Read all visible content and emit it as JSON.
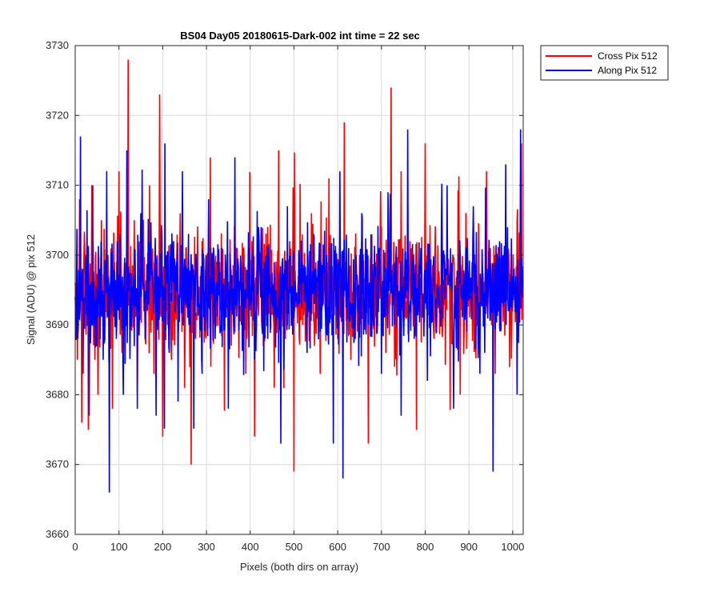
{
  "chart_data": {
    "type": "line",
    "title": "BS04 Day05 20180615-Dark-002 int time = 22 sec",
    "xlabel": "Pixels (both dirs on array)",
    "ylabel": "Signal (ADU) @ pix 512",
    "xlim": [
      0,
      1024
    ],
    "ylim": [
      3660,
      3730
    ],
    "xticks": [
      0,
      100,
      200,
      300,
      400,
      500,
      600,
      700,
      800,
      900,
      1000
    ],
    "yticks": [
      3660,
      3670,
      3680,
      3690,
      3700,
      3710,
      3720,
      3730
    ],
    "grid": true,
    "legend_position": "outside top-right",
    "series": [
      {
        "name": "Cross Pix 512",
        "color": "#ff0000",
        "summary": {
          "n_points": 1024,
          "approx_mean": 3695,
          "approx_min": 3669,
          "approx_max": 3728
        },
        "x": [
          0,
          5,
          10,
          15,
          20,
          24,
          30,
          38,
          45,
          52,
          60,
          68,
          75,
          85,
          92,
          100,
          107,
          115,
          121,
          128,
          135,
          142,
          150,
          160,
          170,
          180,
          187,
          193,
          200,
          210,
          220,
          230,
          240,
          250,
          258,
          265,
          275,
          290,
          310,
          330,
          350,
          370,
          390,
          400,
          410,
          420,
          430,
          440,
          455,
          465,
          480,
          490,
          500,
          510,
          520,
          540,
          560,
          580,
          600,
          615,
          630,
          650,
          670,
          680,
          690,
          700,
          710,
          715,
          722,
          730,
          745,
          755,
          765,
          780,
          800,
          820,
          850,
          880,
          900,
          920,
          940,
          960,
          980,
          1000,
          1010,
          1020,
          1024
        ],
        "y": [
          3696,
          3685,
          3708,
          3676,
          3700,
          3690,
          3675,
          3710,
          3685,
          3680,
          3705,
          3688,
          3700,
          3678,
          3692,
          3712,
          3686,
          3694,
          3728,
          3690,
          3705,
          3680,
          3696,
          3688,
          3710,
          3683,
          3700,
          3723,
          3674,
          3698,
          3685,
          3692,
          3706,
          3681,
          3697,
          3670,
          3688,
          3702,
          3684,
          3699,
          3686,
          3701,
          3683,
          3695,
          3674,
          3698,
          3687,
          3704,
          3681,
          3715,
          3688,
          3702,
          3669,
          3697,
          3690,
          3706,
          3683,
          3711,
          3688,
          3719,
          3685,
          3700,
          3673,
          3696,
          3690,
          3704,
          3686,
          3698,
          3724,
          3684,
          3712,
          3691,
          3702,
          3675,
          3716,
          3688,
          3701,
          3680,
          3697,
          3690,
          3712,
          3683,
          3700,
          3692,
          3705,
          3716,
          3695
        ]
      },
      {
        "name": "Along Pix 512",
        "color": "#0000ff",
        "summary": {
          "n_points": 1024,
          "approx_mean": 3695,
          "approx_min": 3666,
          "approx_max": 3718
        },
        "x": [
          0,
          6,
          12,
          18,
          25,
          32,
          40,
          48,
          56,
          64,
          72,
          78,
          86,
          94,
          102,
          110,
          118,
          126,
          134,
          142,
          150,
          160,
          172,
          185,
          195,
          205,
          215,
          225,
          235,
          245,
          260,
          275,
          290,
          305,
          320,
          335,
          350,
          365,
          380,
          395,
          410,
          425,
          440,
          455,
          470,
          485,
          500,
          515,
          530,
          545,
          560,
          575,
          590,
          605,
          612,
          625,
          640,
          655,
          670,
          685,
          700,
          715,
          730,
          745,
          760,
          775,
          790,
          805,
          820,
          835,
          850,
          865,
          880,
          895,
          910,
          925,
          940,
          955,
          970,
          985,
          1000,
          1010,
          1018,
          1024
        ],
        "y": [
          3694,
          3688,
          3717,
          3683,
          3700,
          3677,
          3710,
          3690,
          3698,
          3685,
          3712,
          3666,
          3695,
          3688,
          3703,
          3680,
          3715,
          3690,
          3697,
          3678,
          3706,
          3688,
          3700,
          3677,
          3694,
          3716,
          3686,
          3702,
          3679,
          3712,
          3690,
          3697,
          3683,
          3708,
          3688,
          3701,
          3678,
          3714,
          3690,
          3697,
          3685,
          3704,
          3688,
          3699,
          3673,
          3707,
          3691,
          3698,
          3686,
          3703,
          3689,
          3700,
          3673,
          3712,
          3668,
          3701,
          3688,
          3706,
          3690,
          3697,
          3683,
          3709,
          3690,
          3677,
          3718,
          3688,
          3701,
          3682,
          3698,
          3692,
          3710,
          3678,
          3700,
          3689,
          3707,
          3683,
          3698,
          3669,
          3702,
          3690,
          3697,
          3680,
          3718,
          3669
        ]
      }
    ]
  }
}
